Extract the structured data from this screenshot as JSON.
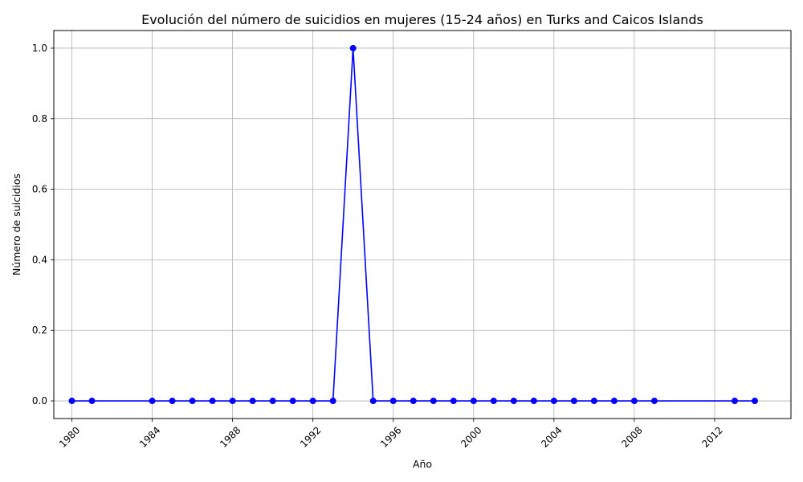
{
  "chart_data": {
    "type": "line",
    "title": "Evolución del número de suicidios en mujeres (15-24 años) en Turks and Caicos Islands",
    "xlabel": "Año",
    "ylabel": "Número de suicidios",
    "xlim": [
      1979.1,
      2015.8
    ],
    "ylim": [
      -0.05,
      1.05
    ],
    "x_ticks": [
      1980,
      1984,
      1988,
      1992,
      1996,
      2000,
      2004,
      2008,
      2012
    ],
    "x_tick_labels": [
      "1980",
      "1984",
      "1988",
      "1992",
      "1996",
      "2000",
      "2004",
      "2008",
      "2012"
    ],
    "y_ticks": [
      0.0,
      0.2,
      0.4,
      0.6,
      0.8,
      1.0
    ],
    "y_tick_labels": [
      "0.0",
      "0.2",
      "0.4",
      "0.6",
      "0.8",
      "1.0"
    ],
    "grid": true,
    "series": [
      {
        "color": "#0000ff",
        "marker": "circle",
        "x": [
          1980,
          1981,
          1984,
          1985,
          1986,
          1987,
          1988,
          1989,
          1990,
          1991,
          1992,
          1993,
          1994,
          1995,
          1996,
          1997,
          1998,
          1999,
          2000,
          2001,
          2002,
          2003,
          2004,
          2005,
          2006,
          2007,
          2008,
          2009,
          2013,
          2014
        ],
        "y": [
          0,
          0,
          0,
          0,
          0,
          0,
          0,
          0,
          0,
          0,
          0,
          0,
          1,
          0,
          0,
          0,
          0,
          0,
          0,
          0,
          0,
          0,
          0,
          0,
          0,
          0,
          0,
          0,
          0,
          0
        ]
      }
    ]
  }
}
